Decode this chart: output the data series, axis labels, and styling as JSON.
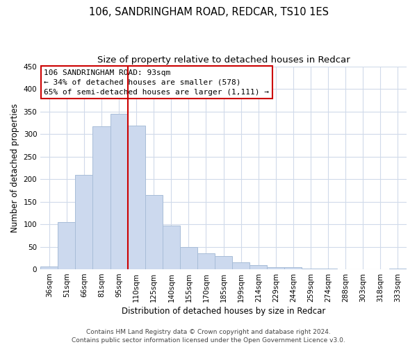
{
  "title": "106, SANDRINGHAM ROAD, REDCAR, TS10 1ES",
  "subtitle": "Size of property relative to detached houses in Redcar",
  "xlabel": "Distribution of detached houses by size in Redcar",
  "ylabel": "Number of detached properties",
  "categories": [
    "36sqm",
    "51sqm",
    "66sqm",
    "81sqm",
    "95sqm",
    "110sqm",
    "125sqm",
    "140sqm",
    "155sqm",
    "170sqm",
    "185sqm",
    "199sqm",
    "214sqm",
    "229sqm",
    "244sqm",
    "259sqm",
    "274sqm",
    "288sqm",
    "303sqm",
    "318sqm",
    "333sqm"
  ],
  "values": [
    7,
    105,
    210,
    317,
    345,
    318,
    165,
    97,
    50,
    36,
    29,
    16,
    9,
    5,
    4,
    1,
    1,
    0,
    0,
    0,
    1
  ],
  "bar_color": "#ccd9ee",
  "bar_edge_color": "#a8bdd8",
  "property_index": 4,
  "vline_color": "#cc0000",
  "annotation_text_line1": "106 SANDRINGHAM ROAD: 93sqm",
  "annotation_text_line2": "← 34% of detached houses are smaller (578)",
  "annotation_text_line3": "65% of semi-detached houses are larger (1,111) →",
  "annotation_box_color": "#ffffff",
  "annotation_box_edge": "#cc0000",
  "ylim": [
    0,
    450
  ],
  "yticks": [
    0,
    50,
    100,
    150,
    200,
    250,
    300,
    350,
    400,
    450
  ],
  "footer_line1": "Contains HM Land Registry data © Crown copyright and database right 2024.",
  "footer_line2": "Contains public sector information licensed under the Open Government Licence v3.0.",
  "bg_color": "#ffffff",
  "grid_color": "#d0daea",
  "title_fontsize": 10.5,
  "subtitle_fontsize": 9.5,
  "axis_label_fontsize": 8.5,
  "tick_fontsize": 7.5,
  "annotation_fontsize": 8,
  "footer_fontsize": 6.5
}
